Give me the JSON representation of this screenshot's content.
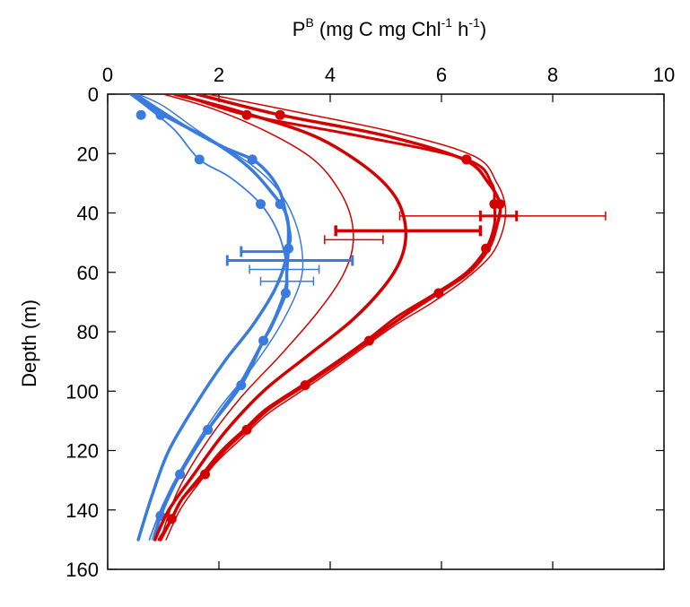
{
  "chart_data": {
    "type": "line",
    "title": "",
    "xlabel": {
      "prefix": "P",
      "sup1": "B",
      "main": " (mg C mg Chl",
      "sup2": "-1",
      "mid": " h",
      "sup3": "-1",
      "suffix": ")"
    },
    "ylabel": "Depth (m)",
    "xlim": [
      0,
      10
    ],
    "ylim": [
      0,
      160
    ],
    "y_inverted": true,
    "x_axis_position": "top",
    "x_ticks": [
      "0",
      "2",
      "4",
      "6",
      "8",
      "10"
    ],
    "y_ticks": [
      "0",
      "20",
      "40",
      "60",
      "80",
      "100",
      "120",
      "140",
      "160"
    ],
    "grid": false,
    "legend": "none",
    "colors": {
      "blue": "#3a7be0",
      "red": "#d40000"
    },
    "series": [
      {
        "color": "#3a7be0",
        "width": 3.5,
        "markers": false,
        "points": [
          [
            0.45,
            0
          ],
          [
            0.8,
            5
          ],
          [
            1.3,
            10
          ],
          [
            1.9,
            16
          ],
          [
            2.5,
            24
          ],
          [
            2.9,
            32
          ],
          [
            3.2,
            40
          ],
          [
            3.25,
            48
          ],
          [
            3.2,
            56
          ],
          [
            3.0,
            66
          ],
          [
            2.6,
            78
          ],
          [
            2.1,
            90
          ],
          [
            1.6,
            104
          ],
          [
            1.1,
            120
          ],
          [
            0.8,
            135
          ],
          [
            0.55,
            150
          ]
        ]
      },
      {
        "color": "#3a7be0",
        "width": 3.5,
        "markers": true,
        "points": [
          [
            0.5,
            0
          ],
          [
            0.9,
            5
          ],
          [
            1.5,
            12
          ],
          [
            2.1,
            18
          ],
          [
            2.6,
            22
          ],
          [
            2.9,
            27
          ],
          [
            3.1,
            33
          ],
          [
            3.2,
            40
          ],
          [
            3.28,
            48
          ],
          [
            3.25,
            52
          ],
          [
            3.22,
            60
          ],
          [
            3.2,
            67
          ],
          [
            2.95,
            78
          ],
          [
            2.8,
            83
          ],
          [
            2.4,
            98
          ],
          [
            1.8,
            113
          ],
          [
            1.3,
            128
          ],
          [
            0.95,
            142
          ],
          [
            0.85,
            150
          ]
        ],
        "marker_points": [
          [
            0.6,
            7
          ],
          [
            0.95,
            7
          ],
          [
            2.6,
            22
          ],
          [
            3.1,
            37
          ],
          [
            3.25,
            52
          ],
          [
            3.2,
            67
          ],
          [
            2.8,
            83
          ],
          [
            2.4,
            98
          ],
          [
            1.8,
            113
          ],
          [
            1.3,
            128
          ],
          [
            0.95,
            142
          ]
        ]
      },
      {
        "color": "#3a7be0",
        "width": 1.8,
        "markers": true,
        "points": [
          [
            0.4,
            0
          ],
          [
            0.75,
            5
          ],
          [
            1.2,
            12
          ],
          [
            1.65,
            22
          ],
          [
            2.2,
            28
          ],
          [
            2.75,
            37
          ],
          [
            3.05,
            46
          ],
          [
            3.2,
            56
          ],
          [
            3.2,
            64
          ],
          [
            3.0,
            75
          ],
          [
            2.7,
            86
          ],
          [
            2.35,
            98
          ],
          [
            1.9,
            110
          ],
          [
            1.4,
            124
          ],
          [
            1.0,
            138
          ],
          [
            0.75,
            150
          ]
        ],
        "marker_points": [
          [
            1.65,
            22
          ],
          [
            2.75,
            37
          ]
        ]
      },
      {
        "color": "#3a7be0",
        "width": 1.5,
        "markers": false,
        "points": [
          [
            0.55,
            0
          ],
          [
            1.0,
            4
          ],
          [
            1.6,
            12
          ],
          [
            2.1,
            18
          ],
          [
            2.6,
            24
          ],
          [
            3.05,
            32
          ],
          [
            3.35,
            42
          ],
          [
            3.5,
            54
          ],
          [
            3.45,
            64
          ],
          [
            3.1,
            78
          ],
          [
            2.6,
            92
          ],
          [
            2.0,
            106
          ],
          [
            1.45,
            122
          ],
          [
            1.05,
            136
          ],
          [
            0.8,
            150
          ]
        ]
      },
      {
        "color": "#d40000",
        "width": 3.5,
        "markers": false,
        "points": [
          [
            1.2,
            0
          ],
          [
            2.4,
            6
          ],
          [
            3.7,
            14
          ],
          [
            4.6,
            24
          ],
          [
            5.15,
            34
          ],
          [
            5.35,
            44
          ],
          [
            5.3,
            54
          ],
          [
            5.0,
            64
          ],
          [
            4.4,
            76
          ],
          [
            3.6,
            88
          ],
          [
            2.8,
            100
          ],
          [
            2.1,
            114
          ],
          [
            1.55,
            128
          ],
          [
            1.1,
            140
          ],
          [
            0.85,
            150
          ]
        ]
      },
      {
        "color": "#d40000",
        "width": 1.5,
        "markers": false,
        "points": [
          [
            1.0,
            0
          ],
          [
            1.9,
            5
          ],
          [
            2.9,
            13
          ],
          [
            3.7,
            22
          ],
          [
            4.15,
            32
          ],
          [
            4.38,
            42
          ],
          [
            4.4,
            52
          ],
          [
            4.2,
            62
          ],
          [
            3.75,
            74
          ],
          [
            3.1,
            88
          ],
          [
            2.4,
            102
          ],
          [
            1.75,
            118
          ],
          [
            1.25,
            134
          ],
          [
            0.95,
            150
          ]
        ]
      },
      {
        "color": "#d40000",
        "width": 3.5,
        "markers": true,
        "points": [
          [
            1.6,
            0
          ],
          [
            3.1,
            7
          ],
          [
            5.0,
            14
          ],
          [
            6.4,
            22
          ],
          [
            6.85,
            30
          ],
          [
            7.05,
            37
          ],
          [
            7.0,
            44
          ],
          [
            6.85,
            52
          ],
          [
            6.5,
            60
          ],
          [
            5.95,
            67
          ],
          [
            5.3,
            75
          ],
          [
            4.7,
            83
          ],
          [
            4.1,
            91
          ],
          [
            3.55,
            98
          ],
          [
            2.9,
            106
          ],
          [
            2.5,
            113
          ],
          [
            2.1,
            120
          ],
          [
            1.75,
            128
          ],
          [
            1.35,
            136
          ],
          [
            1.15,
            143
          ],
          [
            0.95,
            150
          ]
        ],
        "marker_points": [
          [
            3.1,
            7
          ],
          [
            6.45,
            22
          ],
          [
            7.05,
            37
          ],
          [
            6.8,
            52
          ],
          [
            5.95,
            67
          ],
          [
            4.7,
            83
          ],
          [
            3.55,
            98
          ],
          [
            2.5,
            113
          ],
          [
            1.75,
            128
          ],
          [
            1.15,
            143
          ]
        ]
      },
      {
        "color": "#d40000",
        "width": 3.0,
        "markers": true,
        "points": [
          [
            1.3,
            0
          ],
          [
            2.5,
            7
          ],
          [
            4.5,
            14
          ],
          [
            6.45,
            22
          ],
          [
            6.9,
            30
          ],
          [
            6.95,
            37
          ],
          [
            6.95,
            44
          ],
          [
            6.8,
            52
          ],
          [
            6.45,
            60
          ],
          [
            5.9,
            67
          ],
          [
            5.2,
            75
          ],
          [
            4.65,
            83
          ],
          [
            4.05,
            91
          ],
          [
            3.5,
            98
          ],
          [
            2.85,
            106
          ],
          [
            2.45,
            113
          ],
          [
            2.05,
            120
          ],
          [
            1.7,
            128
          ],
          [
            1.35,
            136
          ],
          [
            1.15,
            143
          ],
          [
            0.92,
            150
          ]
        ],
        "marker_points": [
          [
            2.5,
            7
          ],
          [
            6.45,
            22
          ],
          [
            6.95,
            37
          ]
        ]
      },
      {
        "color": "#d40000",
        "width": 1.5,
        "markers": false,
        "points": [
          [
            1.8,
            0
          ],
          [
            3.4,
            6
          ],
          [
            5.2,
            13
          ],
          [
            6.6,
            21
          ],
          [
            7.0,
            30
          ],
          [
            7.15,
            38
          ],
          [
            7.1,
            46
          ],
          [
            6.9,
            54
          ],
          [
            6.45,
            62
          ],
          [
            5.85,
            70
          ],
          [
            5.15,
            78
          ],
          [
            4.55,
            86
          ],
          [
            3.95,
            94
          ],
          [
            3.4,
            101
          ],
          [
            2.85,
            108
          ],
          [
            2.4,
            116
          ],
          [
            1.95,
            124
          ],
          [
            1.6,
            132
          ],
          [
            1.3,
            140
          ],
          [
            1.05,
            150
          ]
        ]
      }
    ],
    "error_bars": [
      {
        "color": "#3a7be0",
        "width": 3.0,
        "y": 56,
        "xmin": 2.15,
        "xmax": 4.4
      },
      {
        "color": "#3a7be0",
        "width": 3.0,
        "y": 53,
        "xmin": 2.4,
        "xmax": 3.2
      },
      {
        "color": "#3a7be0",
        "width": 1.5,
        "y": 59,
        "xmin": 2.55,
        "xmax": 3.8
      },
      {
        "color": "#3a7be0",
        "width": 1.5,
        "y": 63,
        "xmin": 2.75,
        "xmax": 3.7
      },
      {
        "color": "#d40000",
        "width": 3.5,
        "y": 46,
        "xmin": 4.1,
        "xmax": 6.7
      },
      {
        "color": "#d40000",
        "width": 3.0,
        "y": 41,
        "xmin": 6.7,
        "xmax": 7.35
      },
      {
        "color": "#d40000",
        "width": 1.5,
        "y": 41,
        "xmin": 5.25,
        "xmax": 8.95
      },
      {
        "color": "#d40000",
        "width": 1.5,
        "y": 49,
        "xmin": 3.9,
        "xmax": 4.95
      }
    ]
  }
}
